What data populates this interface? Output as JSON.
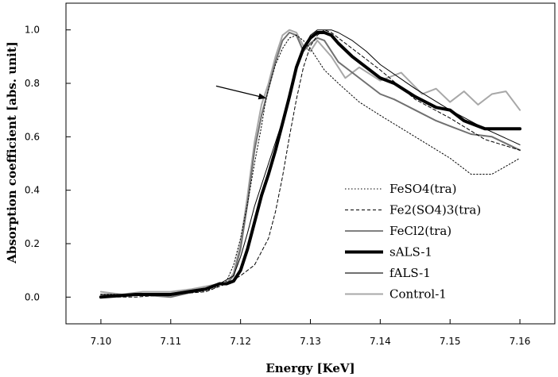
{
  "chart_data": {
    "type": "line",
    "title": "",
    "xlabel": "Energy [KeV]",
    "ylabel": "Absorption coefficient [abs. unit]",
    "xlim": [
      7.095,
      7.165
    ],
    "ylim": [
      -0.1,
      1.1
    ],
    "xticks": [
      7.1,
      7.11,
      7.12,
      7.13,
      7.14,
      7.15,
      7.16
    ],
    "xtick_labels": [
      "7.10",
      "7.11",
      "7.12",
      "7.13",
      "7.14",
      "7.15",
      "7.16"
    ],
    "yticks": [
      0.0,
      0.2,
      0.4,
      0.6,
      0.8,
      1.0
    ],
    "ytick_labels": [
      "0.0",
      "0.2",
      "0.4",
      "0.6",
      "0.8",
      "1.0"
    ],
    "grid": false,
    "legend_position": "bottom-right",
    "annotations": [
      {
        "type": "arrow",
        "from": [
          7.1165,
          0.79
        ],
        "to": [
          7.1236,
          0.745
        ]
      }
    ],
    "series": [
      {
        "name": "FeSO4(tra)",
        "color": "#000000",
        "style": "dotted",
        "width": 1,
        "x": [
          7.1,
          7.105,
          7.11,
          7.114,
          7.116,
          7.118,
          7.119,
          7.12,
          7.121,
          7.122,
          7.123,
          7.1235,
          7.124,
          7.125,
          7.126,
          7.127,
          7.128,
          7.129,
          7.13,
          7.132,
          7.134,
          7.137,
          7.14,
          7.145,
          7.15,
          7.153,
          7.156,
          7.16
        ],
        "y": [
          0.01,
          0.01,
          0.01,
          0.02,
          0.03,
          0.06,
          0.12,
          0.22,
          0.35,
          0.5,
          0.64,
          0.72,
          0.78,
          0.87,
          0.93,
          0.97,
          0.98,
          0.96,
          0.93,
          0.85,
          0.8,
          0.73,
          0.68,
          0.6,
          0.52,
          0.46,
          0.46,
          0.52
        ]
      },
      {
        "name": "Fe2(SO4)3(tra)",
        "color": "#000000",
        "style": "dashed",
        "width": 1,
        "x": [
          7.1,
          7.105,
          7.11,
          7.115,
          7.118,
          7.12,
          7.122,
          7.124,
          7.125,
          7.126,
          7.127,
          7.128,
          7.129,
          7.13,
          7.131,
          7.132,
          7.133,
          7.134,
          7.136,
          7.138,
          7.14,
          7.145,
          7.15,
          7.155,
          7.16
        ],
        "y": [
          0.0,
          0.0,
          0.01,
          0.02,
          0.05,
          0.08,
          0.12,
          0.22,
          0.32,
          0.45,
          0.6,
          0.74,
          0.86,
          0.94,
          0.98,
          1.0,
          0.99,
          0.97,
          0.93,
          0.89,
          0.85,
          0.74,
          0.67,
          0.59,
          0.55
        ]
      },
      {
        "name": "FeCl2(tra)",
        "color": "#000000",
        "style": "solid",
        "width": 1,
        "x": [
          7.1,
          7.105,
          7.11,
          7.115,
          7.117,
          7.119,
          7.12,
          7.121,
          7.122,
          7.123,
          7.124,
          7.125,
          7.126,
          7.127,
          7.128,
          7.129,
          7.13,
          7.131,
          7.132,
          7.133,
          7.134,
          7.136,
          7.138,
          7.14,
          7.145,
          7.15,
          7.155,
          7.16
        ],
        "y": [
          0.0,
          0.01,
          0.01,
          0.03,
          0.05,
          0.08,
          0.15,
          0.24,
          0.34,
          0.42,
          0.5,
          0.58,
          0.66,
          0.75,
          0.85,
          0.93,
          0.98,
          1.0,
          1.0,
          1.0,
          0.99,
          0.96,
          0.92,
          0.87,
          0.78,
          0.7,
          0.63,
          0.57
        ]
      },
      {
        "name": "sALS-1",
        "color": "#000000",
        "style": "solid",
        "width": 4,
        "x": [
          7.1,
          7.105,
          7.11,
          7.115,
          7.117,
          7.118,
          7.119,
          7.12,
          7.121,
          7.122,
          7.123,
          7.124,
          7.125,
          7.126,
          7.127,
          7.128,
          7.129,
          7.13,
          7.131,
          7.132,
          7.133,
          7.134,
          7.136,
          7.138,
          7.14,
          7.142,
          7.145,
          7.148,
          7.15,
          7.152,
          7.155,
          7.158,
          7.16
        ],
        "y": [
          0.0,
          0.01,
          0.01,
          0.03,
          0.05,
          0.05,
          0.06,
          0.1,
          0.18,
          0.28,
          0.38,
          0.46,
          0.55,
          0.65,
          0.75,
          0.86,
          0.93,
          0.97,
          0.99,
          0.99,
          0.98,
          0.95,
          0.9,
          0.86,
          0.82,
          0.8,
          0.75,
          0.71,
          0.7,
          0.66,
          0.63,
          0.63,
          0.63
        ]
      },
      {
        "name": "fALS-1",
        "color": "#707070",
        "style": "solid",
        "width": 2,
        "x": [
          7.1,
          7.105,
          7.11,
          7.115,
          7.117,
          7.118,
          7.119,
          7.12,
          7.121,
          7.122,
          7.123,
          7.124,
          7.125,
          7.126,
          7.127,
          7.128,
          7.129,
          7.13,
          7.131,
          7.132,
          7.134,
          7.136,
          7.138,
          7.14,
          7.142,
          7.145,
          7.148,
          7.15,
          7.153,
          7.156,
          7.16
        ],
        "y": [
          0.01,
          0.01,
          0.0,
          0.03,
          0.05,
          0.05,
          0.08,
          0.18,
          0.35,
          0.55,
          0.68,
          0.78,
          0.88,
          0.96,
          0.99,
          0.98,
          0.92,
          0.95,
          0.97,
          0.96,
          0.88,
          0.84,
          0.8,
          0.76,
          0.74,
          0.7,
          0.66,
          0.64,
          0.61,
          0.6,
          0.55
        ]
      },
      {
        "name": "Control-1",
        "color": "#a8a8a8",
        "style": "solid",
        "width": 2,
        "x": [
          7.1,
          7.103,
          7.106,
          7.11,
          7.113,
          7.115,
          7.117,
          7.118,
          7.119,
          7.12,
          7.121,
          7.122,
          7.123,
          7.124,
          7.125,
          7.126,
          7.127,
          7.128,
          7.129,
          7.13,
          7.131,
          7.133,
          7.135,
          7.137,
          7.14,
          7.143,
          7.146,
          7.148,
          7.15,
          7.152,
          7.154,
          7.156,
          7.158,
          7.16
        ],
        "y": [
          0.02,
          0.01,
          0.02,
          0.02,
          0.03,
          0.04,
          0.05,
          0.05,
          0.09,
          0.2,
          0.38,
          0.58,
          0.72,
          0.8,
          0.9,
          0.98,
          1.0,
          0.99,
          0.94,
          0.92,
          0.96,
          0.9,
          0.82,
          0.86,
          0.81,
          0.84,
          0.76,
          0.78,
          0.73,
          0.77,
          0.72,
          0.76,
          0.77,
          0.7
        ]
      }
    ]
  }
}
